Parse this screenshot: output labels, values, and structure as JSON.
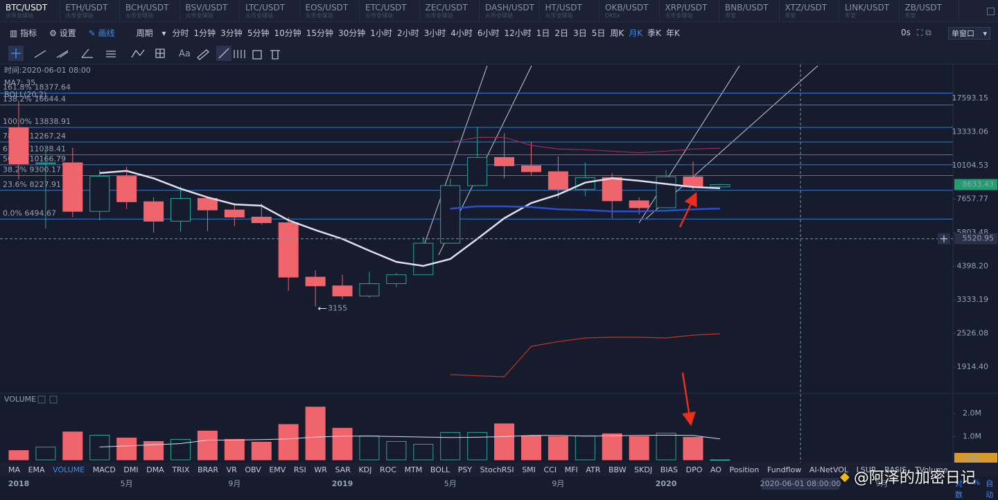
{
  "tabs": [
    {
      "pair": "BTC/USDT",
      "exchange": "火币全球站"
    },
    {
      "pair": "ETH/USDT",
      "exchange": "火币全球站"
    },
    {
      "pair": "BCH/USDT",
      "exchange": "火币全球站"
    },
    {
      "pair": "BSV/USDT",
      "exchange": "火币全球站"
    },
    {
      "pair": "LTC/USDT",
      "exchange": "火币全球站"
    },
    {
      "pair": "EOS/USDT",
      "exchange": "火币全球站"
    },
    {
      "pair": "ETC/USDT",
      "exchange": "火币全球站"
    },
    {
      "pair": "ZEC/USDT",
      "exchange": "火币全球站"
    },
    {
      "pair": "DASH/USDT",
      "exchange": "火币全球站"
    },
    {
      "pair": "HT/USDT",
      "exchange": "火币全球站"
    },
    {
      "pair": "OKB/USDT",
      "exchange": "OKEx"
    },
    {
      "pair": "XRP/USDT",
      "exchange": "火币全球站"
    },
    {
      "pair": "BNB/USDT",
      "exchange": "币安"
    },
    {
      "pair": "XTZ/USDT",
      "exchange": "币安"
    },
    {
      "pair": "LINK/USDT",
      "exchange": "币安"
    },
    {
      "pair": "ZB/USDT",
      "exchange": "币安"
    }
  ],
  "toolbar": {
    "indicators": "指标",
    "settings": "设置",
    "draw": "画线",
    "period": "周期",
    "periods": [
      "分时",
      "1分钟",
      "3分钟",
      "5分钟",
      "10分钟",
      "15分钟",
      "30分钟",
      "1小时",
      "2小时",
      "3小时",
      "4小时",
      "6小时",
      "12小时",
      "1日",
      "2日",
      "3日",
      "5日",
      "周K",
      "月K",
      "季K",
      "年K"
    ],
    "active_period": 18,
    "countdown": "0s",
    "window": "单窗口"
  },
  "draw_tools": {
    "text": "Aa"
  },
  "chart_data": {
    "type": "candlestick",
    "info": "时间:2020-06-01 08:00",
    "ma_label": "MA7: 35",
    "boll_label": "BOLL(20,2)",
    "categories": [
      "2018",
      null,
      null,
      null,
      "5月",
      null,
      null,
      null,
      "9月",
      null,
      null,
      null,
      "2019",
      null,
      null,
      null,
      "5月",
      null,
      null,
      null,
      "9月",
      null,
      null,
      null,
      "2020",
      null,
      null
    ],
    "future_label": "9月",
    "open": [
      13800,
      10250,
      10330,
      6920,
      9240,
      7490,
      6380,
      7700,
      7000,
      6600,
      6300,
      4020,
      3740,
      3440,
      3810,
      4100,
      5320,
      8560,
      10800,
      10080,
      9600,
      8300,
      9150,
      7550,
      7130,
      9200,
      8470
    ],
    "high": [
      17100,
      11780,
      11700,
      9760,
      10000,
      7770,
      8500,
      7800,
      7400,
      7380,
      6600,
      4250,
      4100,
      4200,
      4160,
      5600,
      9090,
      13900,
      13200,
      12300,
      10900,
      10370,
      9500,
      7770,
      9750,
      10450,
      8700
    ],
    "low": [
      9000,
      6000,
      6600,
      6430,
      7050,
      5800,
      5860,
      5880,
      6120,
      6200,
      3590,
      3155,
      3350,
      3390,
      3700,
      4090,
      5350,
      8530,
      9100,
      9280,
      7700,
      7830,
      6550,
      6750,
      7150,
      8250,
      8430
    ],
    "close": [
      10250,
      10330,
      6920,
      9240,
      7490,
      6380,
      7700,
      7000,
      6600,
      6300,
      4020,
      3740,
      3440,
      3810,
      4100,
      5320,
      8560,
      10800,
      10080,
      9600,
      8300,
      9150,
      7550,
      7130,
      9200,
      8470,
      8633.43
    ],
    "colors": {
      "up": "#26a69a",
      "down": "#f0646b"
    },
    "log_scale": true,
    "ylim": [
      1540,
      23280
    ],
    "yticks": [
      17593.15,
      13333.06,
      10104.53,
      7657.77,
      5803.48,
      {
        "value": 4398.2,
        "label": "4398.20"
      },
      3333.19,
      2526.08,
      {
        "value": 1914.4,
        "label": "1914.40"
      }
    ],
    "last_price": 8633.43,
    "crosshair_price": 5520.95,
    "crosshair_time": "2020-06-01 08:00:00",
    "low_marker": 3155,
    "fib_color": "#2f7fd8",
    "fib_levels": [
      {
        "ratio": "161.8%",
        "price": 18377.64
      },
      {
        "ratio": "138.2%",
        "price": 16644.4
      },
      {
        "ratio": "100.0%",
        "price": 13838.91
      },
      {
        "ratio": "78.6%",
        "price": 12267.24
      },
      {
        "ratio": "61.8%",
        "price": 11038.41
      },
      {
        "ratio": "50.0%",
        "price": 10166.79
      },
      {
        "ratio": "38.2%",
        "price": 9300.17
      },
      {
        "ratio": "23.6%",
        "price": 8227.91
      },
      {
        "ratio": "0.0%",
        "price": 6494.67
      }
    ],
    "overlays": [
      {
        "color": "#dde1ef",
        "width": 2.5,
        "values": [
          null,
          null,
          null,
          9490,
          9660,
          9090,
          8340,
          7770,
          7330,
          7250,
          6430,
          5930,
          5510,
          5000,
          4560,
          4410,
          4670,
          5510,
          6540,
          7410,
          7950,
          8770,
          9090,
          8910,
          8680,
          8460,
          8370
        ]
      },
      {
        "color": "#2a4fd0",
        "width": 2.5,
        "values": [
          null,
          null,
          null,
          null,
          null,
          null,
          null,
          null,
          null,
          null,
          null,
          null,
          null,
          null,
          null,
          null,
          7080,
          7210,
          7210,
          7170,
          7040,
          7000,
          6920,
          6920,
          6960,
          7040,
          7080
        ]
      },
      {
        "color": "#9c2c55",
        "width": 1.2,
        "values": [
          null,
          null,
          null,
          null,
          null,
          null,
          null,
          null,
          null,
          null,
          null,
          null,
          null,
          null,
          null,
          null,
          12250,
          12740,
          12740,
          11930,
          11580,
          11510,
          11370,
          11230,
          11370,
          11580,
          11650
        ]
      },
      {
        "color": "#c0381c",
        "width": 1.2,
        "values": [
          null,
          null,
          null,
          null,
          null,
          null,
          null,
          null,
          null,
          null,
          null,
          null,
          null,
          null,
          null,
          null,
          1798,
          1780,
          1767,
          2271,
          2360,
          2433,
          2447,
          2447,
          2433,
          2490,
          2520
        ]
      }
    ],
    "volume": {
      "title": "VOLUME",
      "values": [
        400000,
        550000,
        1200000,
        1060000,
        940000,
        790000,
        880000,
        1240000,
        880000,
        760000,
        1520000,
        2270000,
        1360000,
        1030000,
        790000,
        670000,
        1180000,
        1180000,
        1550000,
        1030000,
        1000000,
        1030000,
        1120000,
        1000000,
        1150000,
        970000,
        3800
      ],
      "last_label": "3.8k",
      "ylim": [
        0,
        2800000
      ],
      "yticks": [
        {
          "value": 1000000,
          "label": "1.0M"
        },
        {
          "value": 2000000,
          "label": "2.0M"
        }
      ],
      "ma": [
        null,
        null,
        null,
        550000,
        600000,
        650000,
        700000,
        850000,
        850000,
        870000,
        900000,
        980000,
        1020000,
        1020000,
        1000000,
        980000,
        960000,
        970000,
        1000000,
        1050000,
        1050000,
        1020000,
        1030000,
        1050000,
        1060000,
        1050000,
        900000
      ],
      "ma_color": "#dde1ef"
    }
  },
  "indicators": [
    "MA",
    "EMA",
    "VOLUME",
    "MACD",
    "DMI",
    "DMA",
    "TRIX",
    "BRAR",
    "VR",
    "OBV",
    "EMV",
    "RSI",
    "WR",
    "SAR",
    "KDJ",
    "ROC",
    "MTM",
    "BOLL",
    "PSY",
    "StochRSI",
    "SMI",
    "CCI",
    "MFI",
    "ATR",
    "BBW",
    "SKDJ",
    "BIAS",
    "DPO",
    "AO",
    "Position",
    "Fundflow",
    "AI-NetVOL",
    "LSUR",
    "BASIS",
    "TVolume"
  ],
  "active_indicator": 2,
  "scale_options": [
    "对数",
    "%",
    "自动"
  ],
  "watermark": "@阿泽的加密日记"
}
